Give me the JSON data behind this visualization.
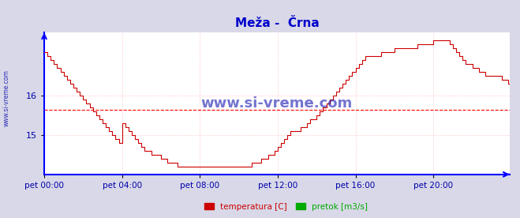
{
  "title": "Meža -  Črna",
  "title_color": "#0000cc",
  "title_fontsize": 11,
  "bg_color": "#d8d8e8",
  "plot_bg_color": "#ffffff",
  "grid_color": "#ffaaaa",
  "axis_color": "#0000ff",
  "watermark": "www.si-vreme.com",
  "watermark_color": "#0000aa",
  "xlabel_color": "#0000aa",
  "ylabel_color": "#0000aa",
  "tick_labels": [
    "pet 00:00",
    "pet 04:00",
    "pet 08:00",
    "pet 12:00",
    "pet 16:00",
    "pet 20:00"
  ],
  "tick_positions": [
    0,
    48,
    96,
    144,
    192,
    240
  ],
  "yticks": [
    15,
    16
  ],
  "ymin": 14.0,
  "ymax": 17.6,
  "avg_line_y": 15.65,
  "avg_line_color": "#ff0000",
  "temp_color": "#cc0000",
  "pretok_color": "#0000bb",
  "legend_temp_color": "#cc0000",
  "legend_pretok_color": "#00aa00",
  "total_points": 288,
  "temperature": [
    17.1,
    17.1,
    17.0,
    17.0,
    16.9,
    16.9,
    16.8,
    16.8,
    16.7,
    16.7,
    16.6,
    16.6,
    16.5,
    16.5,
    16.4,
    16.4,
    16.3,
    16.3,
    16.2,
    16.2,
    16.1,
    16.1,
    16.0,
    16.0,
    15.9,
    15.9,
    15.8,
    15.8,
    15.7,
    15.7,
    15.6,
    15.6,
    15.5,
    15.5,
    15.4,
    15.4,
    15.3,
    15.3,
    15.2,
    15.2,
    15.1,
    15.1,
    15.0,
    15.0,
    14.9,
    14.9,
    14.8,
    14.8,
    15.3,
    15.3,
    15.2,
    15.2,
    15.1,
    15.1,
    15.0,
    15.0,
    14.9,
    14.9,
    14.8,
    14.8,
    14.7,
    14.7,
    14.6,
    14.6,
    14.6,
    14.6,
    14.5,
    14.5,
    14.5,
    14.5,
    14.5,
    14.5,
    14.4,
    14.4,
    14.4,
    14.4,
    14.3,
    14.3,
    14.3,
    14.3,
    14.3,
    14.3,
    14.2,
    14.2,
    14.2,
    14.2,
    14.2,
    14.2,
    14.2,
    14.2,
    14.2,
    14.2,
    14.2,
    14.2,
    14.2,
    14.2,
    14.2,
    14.2,
    14.2,
    14.2,
    14.2,
    14.2,
    14.2,
    14.2,
    14.2,
    14.2,
    14.2,
    14.2,
    14.2,
    14.2,
    14.2,
    14.2,
    14.2,
    14.2,
    14.2,
    14.2,
    14.2,
    14.2,
    14.2,
    14.2,
    14.2,
    14.2,
    14.2,
    14.2,
    14.2,
    14.2,
    14.2,
    14.2,
    14.3,
    14.3,
    14.3,
    14.3,
    14.3,
    14.3,
    14.4,
    14.4,
    14.4,
    14.4,
    14.5,
    14.5,
    14.5,
    14.5,
    14.6,
    14.6,
    14.7,
    14.7,
    14.8,
    14.8,
    14.9,
    14.9,
    15.0,
    15.0,
    15.1,
    15.1,
    15.1,
    15.1,
    15.1,
    15.1,
    15.2,
    15.2,
    15.2,
    15.2,
    15.3,
    15.3,
    15.4,
    15.4,
    15.4,
    15.4,
    15.5,
    15.5,
    15.6,
    15.6,
    15.7,
    15.7,
    15.8,
    15.8,
    15.9,
    15.9,
    16.0,
    16.0,
    16.1,
    16.1,
    16.2,
    16.2,
    16.3,
    16.3,
    16.4,
    16.4,
    16.5,
    16.5,
    16.6,
    16.6,
    16.7,
    16.7,
    16.8,
    16.8,
    16.9,
    16.9,
    17.0,
    17.0,
    17.0,
    17.0,
    17.0,
    17.0,
    17.0,
    17.0,
    17.0,
    17.0,
    17.1,
    17.1,
    17.1,
    17.1,
    17.1,
    17.1,
    17.1,
    17.1,
    17.2,
    17.2,
    17.2,
    17.2,
    17.2,
    17.2,
    17.2,
    17.2,
    17.2,
    17.2,
    17.2,
    17.2,
    17.2,
    17.2,
    17.3,
    17.3,
    17.3,
    17.3,
    17.3,
    17.3,
    17.3,
    17.3,
    17.3,
    17.3,
    17.4,
    17.4,
    17.4,
    17.4,
    17.4,
    17.4,
    17.4,
    17.4,
    17.4,
    17.4,
    17.3,
    17.3,
    17.2,
    17.2,
    17.1,
    17.1,
    17.0,
    17.0,
    16.9,
    16.9,
    16.8,
    16.8,
    16.8,
    16.8,
    16.7,
    16.7,
    16.7,
    16.7,
    16.6,
    16.6,
    16.6,
    16.6,
    16.5,
    16.5,
    16.5,
    16.5,
    16.5,
    16.5,
    16.5,
    16.5,
    16.5,
    16.5,
    16.4,
    16.4,
    16.4,
    16.4,
    16.3,
    16.3
  ]
}
